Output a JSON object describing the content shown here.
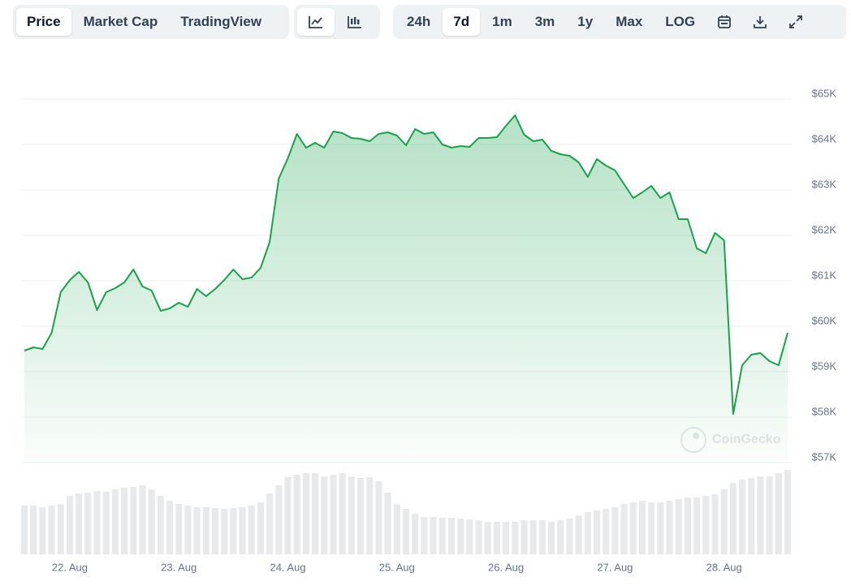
{
  "toolbar": {
    "tabs": [
      "Price",
      "Market Cap",
      "TradingView"
    ],
    "ranges": [
      "24h",
      "7d",
      "1m",
      "3m",
      "1y",
      "Max",
      "LOG"
    ]
  },
  "chart_data": {
    "type": "area",
    "categories": [
      null,
      null,
      null,
      null,
      null,
      "22. Aug",
      null,
      null,
      null,
      null,
      null,
      null,
      null,
      null,
      null,
      null,
      null,
      "23. Aug",
      null,
      null,
      null,
      null,
      null,
      null,
      null,
      null,
      null,
      null,
      null,
      "24. Aug",
      null,
      null,
      null,
      null,
      null,
      null,
      null,
      null,
      null,
      null,
      null,
      "25. Aug",
      null,
      null,
      null,
      null,
      null,
      null,
      null,
      null,
      null,
      null,
      null,
      "26. Aug",
      null,
      null,
      null,
      null,
      null,
      null,
      null,
      null,
      null,
      null,
      null,
      "27. Aug",
      null,
      null,
      null,
      null,
      null,
      null,
      null,
      null,
      null,
      null,
      null,
      "28. Aug",
      null,
      null,
      null,
      null,
      null,
      null,
      null
    ],
    "values": [
      59464,
      59536,
      59500,
      59857,
      60750,
      61018,
      61196,
      60964,
      60357,
      60750,
      60839,
      60964,
      61250,
      60875,
      60786,
      60339,
      60393,
      60518,
      60429,
      60821,
      60661,
      60821,
      61018,
      61250,
      61036,
      61071,
      61286,
      61857,
      63250,
      63696,
      64232,
      63929,
      64036,
      63929,
      64286,
      64250,
      64143,
      64125,
      64071,
      64232,
      64268,
      64196,
      63982,
      64339,
      64232,
      64268,
      64000,
      63929,
      63964,
      63946,
      64143,
      64143,
      64161,
      64411,
      64643,
      64214,
      64071,
      64107,
      63857,
      63786,
      63750,
      63607,
      63286,
      63679,
      63536,
      63429,
      63125,
      62821,
      62946,
      63089,
      62821,
      62946,
      62357,
      62357,
      61714,
      61607,
      62054,
      61893,
      58071,
      59143,
      59375,
      59411,
      59232,
      59143,
      59857
    ],
    "color": "#16a34a",
    "volume": [
      60,
      60,
      58,
      60,
      62,
      72,
      75,
      76,
      78,
      77,
      80,
      82,
      83,
      85,
      80,
      72,
      66,
      62,
      60,
      58,
      58,
      57,
      56,
      57,
      58,
      60,
      64,
      75,
      85,
      95,
      98,
      100,
      100,
      96,
      98,
      100,
      96,
      94,
      95,
      90,
      76,
      62,
      56,
      50,
      46,
      46,
      45,
      45,
      44,
      43,
      42,
      40,
      40,
      40,
      40,
      42,
      42,
      42,
      40,
      42,
      44,
      48,
      52,
      54,
      56,
      58,
      62,
      64,
      66,
      64,
      64,
      66,
      68,
      70,
      70,
      72,
      74,
      80,
      88,
      92,
      94,
      96,
      96,
      100,
      104
    ],
    "volume_color": "#e8e9eb",
    "volume_ylim": [
      0,
      180
    ],
    "ylim": [
      57000,
      65000
    ],
    "yticks": [
      {
        "value": 57000,
        "label": "$57K"
      },
      {
        "value": 58000,
        "label": "$58K"
      },
      {
        "value": 59000,
        "label": "$59K"
      },
      {
        "value": 60000,
        "label": "$60K"
      },
      {
        "value": 61000,
        "label": "$61K"
      },
      {
        "value": 62000,
        "label": "$62K"
      },
      {
        "value": 63000,
        "label": "$63K"
      },
      {
        "value": 64000,
        "label": "$64K"
      },
      {
        "value": 65000,
        "label": "$65K"
      }
    ],
    "grid": true,
    "watermark": "CoinGecko"
  }
}
